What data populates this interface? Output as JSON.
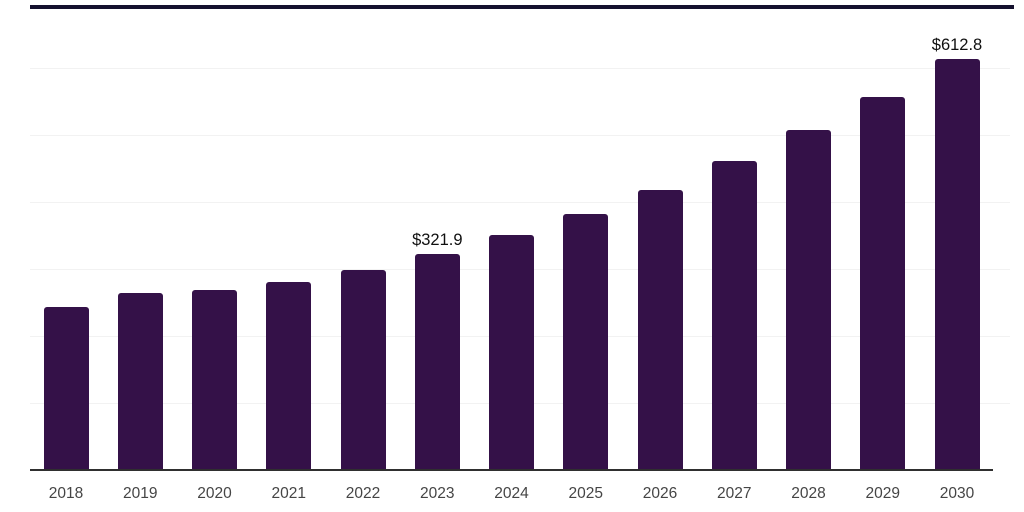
{
  "chart_data": {
    "type": "bar",
    "title": "",
    "categories": [
      "2018",
      "2019",
      "2020",
      "2021",
      "2022",
      "2023",
      "2024",
      "2025",
      "2026",
      "2027",
      "2028",
      "2029",
      "2030"
    ],
    "values": [
      243,
      264,
      268,
      280,
      298,
      321.9,
      350,
      382,
      418,
      461,
      507,
      556,
      612.8
    ],
    "value_labels": [
      "",
      "",
      "",
      "",
      "",
      "$321.9",
      "",
      "",
      "",
      "",
      "",
      "",
      "$612.8"
    ],
    "xlabel": "",
    "ylabel": "",
    "y_axis_tick_labels_visible": false,
    "ylim": [
      0,
      700
    ],
    "gridline_values": [
      100,
      200,
      300,
      400,
      500,
      600
    ],
    "grid": "horizontal-only",
    "legend": "none",
    "colors": {
      "bar": "#341148",
      "top_rule": "#15112e",
      "axis_line": "#2f2f2f",
      "gridline": "#f2f2f2",
      "tick_label": "#454545",
      "value_label": "#101010",
      "background": "#ffffff"
    }
  }
}
